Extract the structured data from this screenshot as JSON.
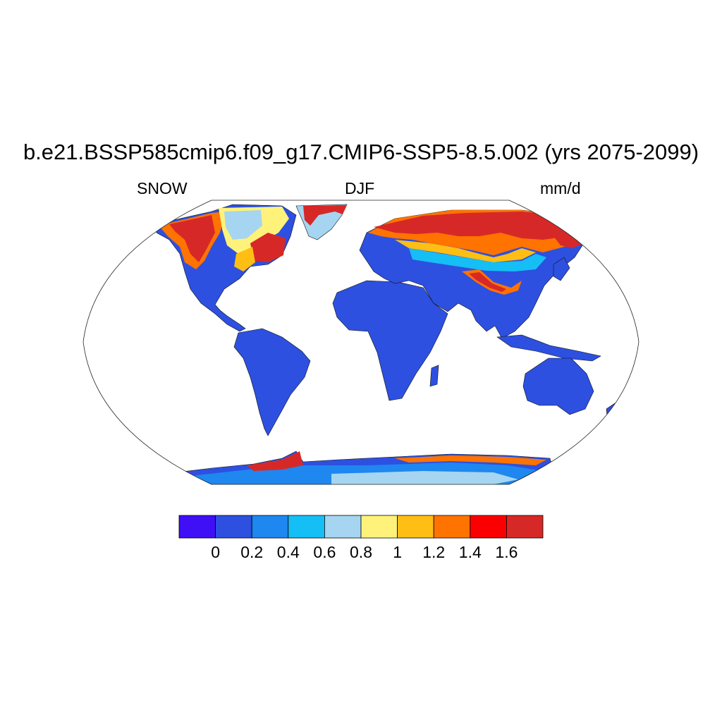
{
  "title": "b.e21.BSSP585cmip6.f09_g17.CMIP6-SSP5-8.5.002 (yrs 2075-2099)",
  "subtitle_left": "SNOW",
  "subtitle_center": "DJF",
  "subtitle_right": "mm/d",
  "colorbar": {
    "colors": [
      "#3f0ff5",
      "#2d50e0",
      "#1e87f0",
      "#15bef5",
      "#a5d5f0",
      "#fff27a",
      "#ffbe14",
      "#ff7300",
      "#fa0000",
      "#d72828"
    ],
    "tick_labels": [
      "0",
      "0.2",
      "0.4",
      "0.6",
      "0.8",
      "1",
      "1.2",
      "1.4",
      "1.6"
    ]
  }
}
